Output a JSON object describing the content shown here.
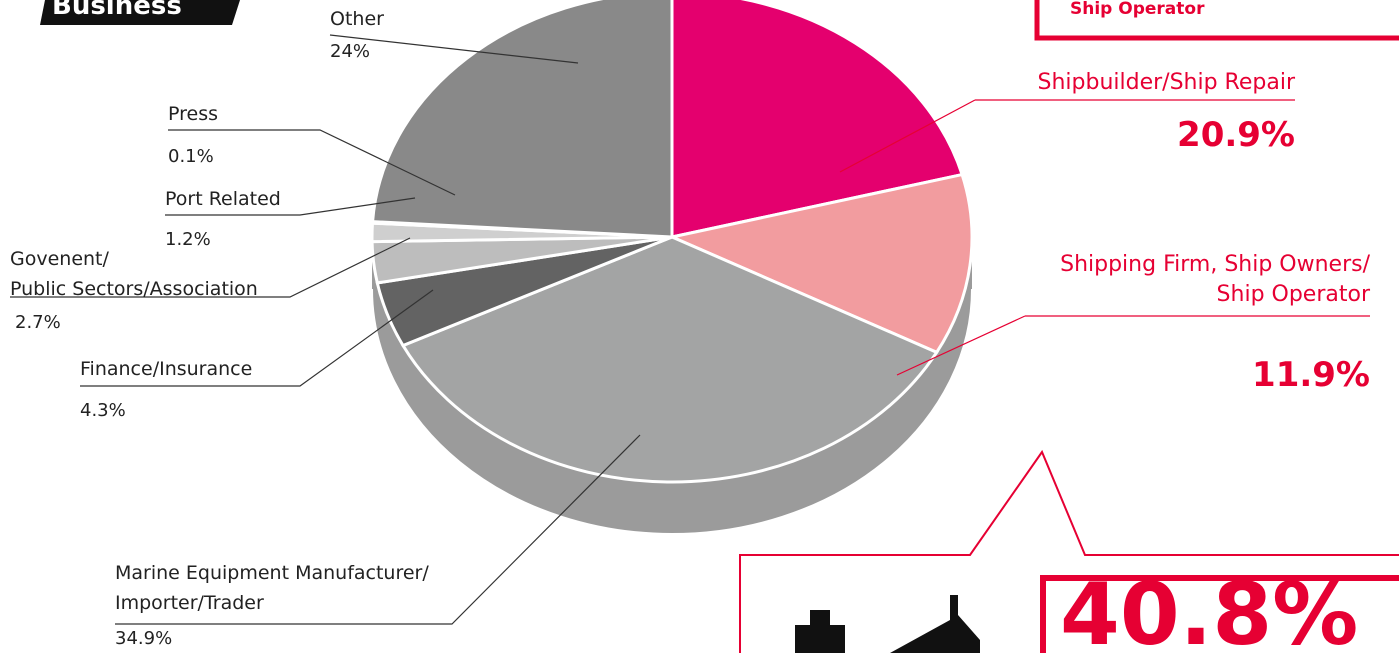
{
  "header": {
    "title": "Business"
  },
  "chart_data": {
    "type": "pie",
    "categories": [
      "Shipbuilder/Ship Repair",
      "Shipping Firm, Ship Owners/\nShip Operator",
      "Marine Equipment Manufacturer/\nImporter/Trader",
      "Finance/Insurance",
      "Govenent/\nPublic Sectors/Association",
      "Port Related",
      "Press",
      "Other"
    ],
    "values": [
      20.9,
      11.9,
      34.9,
      4.3,
      2.7,
      1.2,
      0.1,
      24
    ],
    "value_labels": [
      "20.9%",
      "11.9%",
      "34.9%",
      "4.3%",
      "2.7%",
      "1.2%",
      "0.1%",
      "24%"
    ],
    "colors": [
      "#e4006e",
      "#f29c9f",
      "#a3a4a4",
      "#636363",
      "#bdbdbd",
      "#cfcfcf",
      "#3e3a39",
      "#898989"
    ],
    "annotations": {
      "top_box": "Ship Operator",
      "highlight": "40.8%"
    }
  }
}
